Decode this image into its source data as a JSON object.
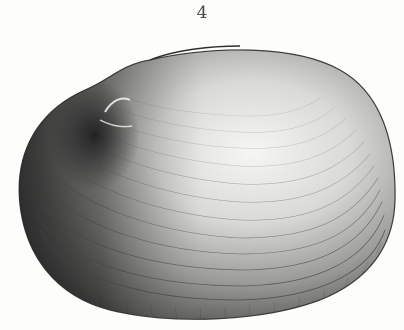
{
  "plate": {
    "figure_number": "4"
  },
  "illustration": {
    "subject": "shell-icon",
    "ink_color": "#3b3b3b",
    "paper_color": "#fdfdfb"
  }
}
